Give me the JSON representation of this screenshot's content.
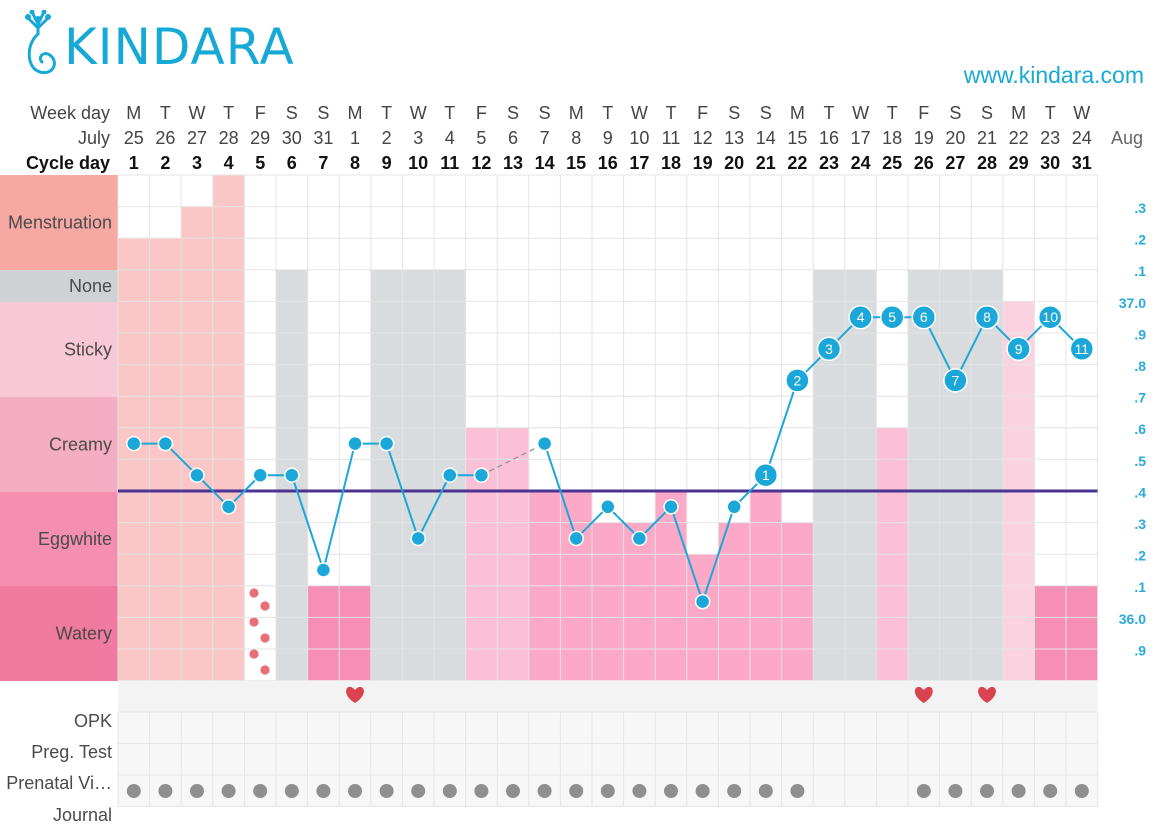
{
  "brand": {
    "name": "KINDARA",
    "url": "www.kindara.com",
    "color": "#17a9d6"
  },
  "header": {
    "week_day_label": "Week day",
    "month_label": "July",
    "cycle_label": "Cycle day",
    "next_month": "Aug"
  },
  "days": {
    "weekday": [
      "M",
      "T",
      "W",
      "T",
      "F",
      "S",
      "S",
      "M",
      "T",
      "W",
      "T",
      "F",
      "S",
      "S",
      "M",
      "T",
      "W",
      "T",
      "F",
      "S",
      "S",
      "M",
      "T",
      "W",
      "T",
      "F",
      "S",
      "S",
      "M",
      "T",
      "W"
    ],
    "date": [
      "25",
      "26",
      "27",
      "28",
      "29",
      "30",
      "31",
      "1",
      "2",
      "3",
      "4",
      "5",
      "6",
      "7",
      "8",
      "9",
      "10",
      "11",
      "12",
      "13",
      "14",
      "15",
      "16",
      "17",
      "18",
      "19",
      "20",
      "21",
      "22",
      "23",
      "24"
    ],
    "cycle": [
      "1",
      "2",
      "3",
      "4",
      "5",
      "6",
      "7",
      "8",
      "9",
      "10",
      "11",
      "12",
      "13",
      "14",
      "15",
      "16",
      "17",
      "18",
      "19",
      "20",
      "21",
      "22",
      "23",
      "24",
      "25",
      "26",
      "27",
      "28",
      "29",
      "30",
      "31"
    ]
  },
  "fluid_labels": [
    "Menstruation",
    "None",
    "Sticky",
    "Creamy",
    "Eggwhite",
    "Watery"
  ],
  "temp_axis_labels": [
    ".3",
    ".2",
    ".1",
    "37.0",
    ".9",
    ".8",
    ".7",
    ".6",
    ".5",
    ".4",
    ".3",
    ".2",
    ".1",
    "36.0",
    ".9"
  ],
  "bottom_labels": [
    "OPK",
    "Preg. Test",
    "Prenatal Vi…",
    "Journal"
  ],
  "colors": {
    "menstruation_label": "#f6a9a3",
    "none_label": "#cfd2d4",
    "sticky_label": "#f8c8d6",
    "creamy_label": "#f5adc3",
    "eggwhite_label": "#f48fb1",
    "watery_label": "#f07aa0",
    "menstruation": "#fbc6c6",
    "none": "#d9dcde",
    "sticky": "#fbd3e0",
    "creamy": "#fbc0d5",
    "eggwhite": "#fba9c6",
    "watery": "#f78eb3",
    "temp_line": "#1ba8d8",
    "coverline": "#4a3391",
    "heart": "#d9434f",
    "spot": "#e86f77",
    "dot": "#8f8f8f"
  },
  "chart_data": {
    "type": "fertility-chart",
    "days": 31,
    "temperature": {
      "unit": "°C",
      "range": [
        35.85,
        37.35
      ],
      "coverline": 36.35,
      "values": [
        36.5,
        36.5,
        36.4,
        36.3,
        36.4,
        36.4,
        36.1,
        36.5,
        36.5,
        36.2,
        36.4,
        36.4,
        null,
        36.5,
        36.2,
        36.3,
        36.2,
        36.3,
        36.0,
        36.3,
        36.4,
        36.7,
        36.8,
        36.9,
        36.9,
        36.9,
        36.7,
        36.9,
        36.8,
        36.9,
        36.8
      ],
      "dashed_gap": [
        12,
        14
      ],
      "labels": {
        "21": "1",
        "22": "2",
        "23": "3",
        "24": "4",
        "25": "5",
        "26": "6",
        "27": "7",
        "28": "8",
        "29": "9",
        "30": "10",
        "31": "11"
      }
    },
    "menstruation": [
      {
        "day": 1,
        "level": 2
      },
      {
        "day": 2,
        "level": 2
      },
      {
        "day": 3,
        "level": 3
      },
      {
        "day": 4,
        "level": 4
      },
      {
        "day": 5,
        "level": "spotting"
      }
    ],
    "fluid": [
      "",
      "",
      "",
      "",
      "",
      "none",
      "watery",
      "watery",
      "none",
      "none",
      "none",
      "creamy",
      "creamy",
      "eggwhite",
      "eggwhite",
      "eggwhite",
      "eggwhite",
      "eggwhite",
      "eggwhite",
      "eggwhite",
      "eggwhite",
      "eggwhite",
      "none",
      "none",
      "creamy",
      "none",
      "none",
      "none",
      "sticky",
      "watery",
      "watery"
    ],
    "fluid_heights": [
      0,
      0,
      0,
      0,
      0,
      13,
      3,
      3,
      13,
      13,
      13,
      8,
      8,
      6,
      6,
      5,
      5,
      6,
      4,
      5,
      6,
      5,
      13,
      13,
      8,
      13,
      13,
      13,
      12,
      3,
      3
    ],
    "intercourse": [
      8,
      26,
      28
    ],
    "prenatal_vitamins": [
      1,
      2,
      3,
      4,
      5,
      6,
      7,
      8,
      9,
      10,
      11,
      12,
      13,
      14,
      15,
      16,
      17,
      18,
      19,
      20,
      21,
      22,
      26,
      27,
      28,
      29,
      30,
      31
    ]
  }
}
